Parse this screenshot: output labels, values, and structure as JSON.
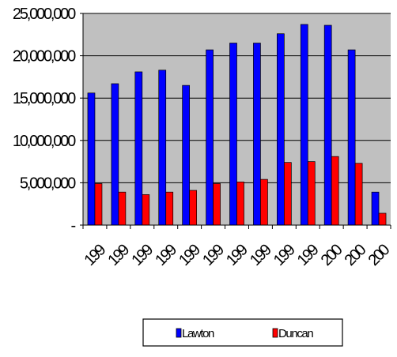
{
  "chart_data": {
    "type": "bar",
    "categories": [
      "199",
      "199",
      "199",
      "199",
      "199",
      "199",
      "199",
      "199",
      "199",
      "199",
      "200",
      "200",
      "200"
    ],
    "series": [
      {
        "name": "Lawton",
        "color": "#0000ff",
        "values": [
          15600000,
          16700000,
          18100000,
          18300000,
          16500000,
          20700000,
          21500000,
          21500000,
          22600000,
          23700000,
          23600000,
          20700000,
          3900000
        ]
      },
      {
        "name": "Duncan",
        "color": "#ff0000",
        "values": [
          4900000,
          3900000,
          3600000,
          3900000,
          4100000,
          4900000,
          5100000,
          5400000,
          7400000,
          7500000,
          8100000,
          7300000,
          1400000
        ]
      }
    ],
    "yticks": [
      0,
      5000000,
      10000000,
      15000000,
      20000000,
      25000000
    ],
    "ytick_labels": [
      "-",
      "5,000,000",
      "10,000,000",
      "15,000,000",
      "20,000,000",
      "25,000,000"
    ],
    "ylim": [
      0,
      25000000
    ],
    "grid": true,
    "plot_background": "#c0c0c0",
    "legend_position": "bottom",
    "title": "",
    "xlabel": "",
    "ylabel": ""
  }
}
